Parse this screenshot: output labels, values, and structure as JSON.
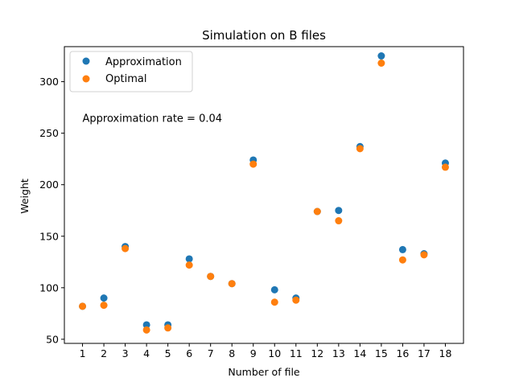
{
  "chart_data": {
    "type": "scatter",
    "title": "Simulation on B files",
    "xlabel": "Number of file",
    "ylabel": "Weight",
    "x": [
      1,
      2,
      3,
      4,
      5,
      6,
      7,
      8,
      9,
      10,
      11,
      12,
      13,
      14,
      15,
      16,
      17,
      18
    ],
    "xticks": [
      1,
      2,
      3,
      4,
      5,
      6,
      7,
      8,
      9,
      10,
      11,
      12,
      13,
      14,
      15,
      16,
      17,
      18
    ],
    "yticks": [
      50,
      100,
      150,
      200,
      250,
      300
    ],
    "xlim": [
      0.15,
      18.85
    ],
    "ylim": [
      46,
      334
    ],
    "grid": false,
    "legend_position": "top-left",
    "series": [
      {
        "name": "Approximation",
        "color": "#1f77b4",
        "values": [
          82,
          90,
          140,
          64,
          64,
          128,
          111,
          104,
          224,
          98,
          90,
          174,
          175,
          237,
          325,
          137,
          133,
          221
        ]
      },
      {
        "name": "Optimal",
        "color": "#ff7f0e",
        "values": [
          82,
          83,
          138,
          59,
          61,
          122,
          111,
          104,
          220,
          86,
          88,
          174,
          165,
          235,
          318,
          127,
          132,
          217
        ]
      }
    ],
    "annotations": [
      {
        "text": "Approximation rate = 0.04",
        "x": 1,
        "y": 261
      }
    ]
  }
}
